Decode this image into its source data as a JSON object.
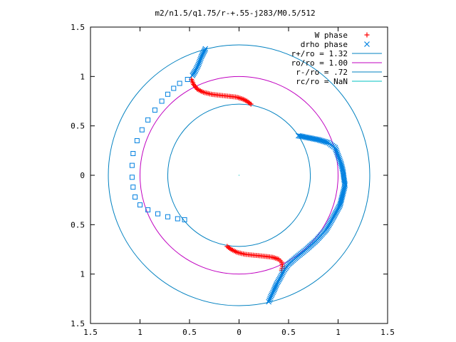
{
  "chart_data": {
    "type": "scatter",
    "title": "m2/n1.5/q1.75/r-+.55-j283/M0.5/512",
    "xlim": [
      -1.5,
      1.5
    ],
    "ylim": [
      -1.5,
      1.5
    ],
    "x_tick_values": [
      -1.5,
      -1,
      -0.5,
      0,
      0.5,
      1,
      1.5
    ],
    "x_tick_labels": [
      "1.5",
      "1",
      "0.5",
      "0",
      "0.5",
      "1",
      "1.5"
    ],
    "y_tick_values": [
      1.5,
      1,
      0.5,
      0,
      -0.5,
      -1,
      -1.5
    ],
    "y_tick_labels": [
      "1.5",
      "1",
      "0.5",
      "0",
      "0.5",
      "1",
      "1.5"
    ],
    "grid": false,
    "legend_position": "top-right",
    "legend": [
      {
        "label": "W phase",
        "kind": "plus",
        "color": "#ff0000"
      },
      {
        "label": "drho phase",
        "kind": "cross",
        "color": "#0080e0"
      },
      {
        "label": "r+/ro = 1.32",
        "kind": "line",
        "color": "#0080c0"
      },
      {
        "label": "ro/ro = 1.00",
        "kind": "line",
        "color": "#c000c0"
      },
      {
        "label": "r-/ro = .72",
        "kind": "line",
        "color": "#0080c0"
      },
      {
        "label": "rc/ro = NaN",
        "kind": "line",
        "color": "#00c0c0"
      }
    ],
    "circles": [
      {
        "r": 1.32,
        "color": "#0080c0"
      },
      {
        "r": 1.0,
        "color": "#c000c0"
      },
      {
        "r": 0.72,
        "color": "#0080c0"
      }
    ],
    "series": [
      {
        "name": "W phase",
        "marker": "plus",
        "color": "#ff0000",
        "points": [
          [
            -0.48,
            0.97
          ],
          [
            -0.46,
            0.92
          ],
          [
            -0.42,
            0.87
          ],
          [
            -0.36,
            0.84
          ],
          [
            -0.28,
            0.82
          ],
          [
            -0.2,
            0.81
          ],
          [
            -0.1,
            0.8
          ],
          [
            -0.02,
            0.79
          ],
          [
            0.04,
            0.77
          ],
          [
            0.08,
            0.75
          ],
          [
            0.12,
            0.72
          ],
          [
            -0.12,
            -0.72
          ],
          [
            -0.08,
            -0.75
          ],
          [
            -0.02,
            -0.78
          ],
          [
            0.06,
            -0.8
          ],
          [
            0.16,
            -0.81
          ],
          [
            0.26,
            -0.82
          ],
          [
            0.34,
            -0.83
          ],
          [
            0.4,
            -0.85
          ],
          [
            0.43,
            -0.88
          ],
          [
            0.44,
            -0.92
          ],
          [
            0.43,
            -0.96
          ]
        ]
      },
      {
        "name": "drho phase",
        "marker": "cross",
        "color": "#0080e0",
        "points": [
          [
            -0.34,
            1.28
          ],
          [
            -0.38,
            1.2
          ],
          [
            -0.41,
            1.12
          ],
          [
            -0.44,
            1.06
          ],
          [
            -0.47,
            1.01
          ],
          [
            0.6,
            0.4
          ],
          [
            0.7,
            0.38
          ],
          [
            0.8,
            0.36
          ],
          [
            0.9,
            0.33
          ],
          [
            0.97,
            0.28
          ],
          [
            1.0,
            0.2
          ],
          [
            1.03,
            0.12
          ],
          [
            1.05,
            0.04
          ],
          [
            1.06,
            -0.04
          ],
          [
            1.07,
            -0.1
          ],
          [
            1.05,
            -0.18
          ],
          [
            1.02,
            -0.3
          ],
          [
            0.95,
            -0.43
          ],
          [
            0.88,
            -0.55
          ],
          [
            0.78,
            -0.66
          ],
          [
            0.68,
            -0.75
          ],
          [
            0.58,
            -0.83
          ],
          [
            0.5,
            -0.9
          ],
          [
            0.45,
            -0.97
          ],
          [
            0.42,
            -1.03
          ],
          [
            0.38,
            -1.1
          ],
          [
            0.35,
            -1.17
          ],
          [
            0.32,
            -1.23
          ],
          [
            0.3,
            -1.28
          ]
        ]
      },
      {
        "name": "",
        "marker": "square",
        "color": "#0080e0",
        "points": [
          [
            -0.52,
            0.97
          ],
          [
            -0.6,
            0.93
          ],
          [
            -0.66,
            0.88
          ],
          [
            -0.72,
            0.82
          ],
          [
            -0.78,
            0.75
          ],
          [
            -0.85,
            0.66
          ],
          [
            -0.92,
            0.56
          ],
          [
            -0.98,
            0.46
          ],
          [
            -1.03,
            0.35
          ],
          [
            -1.07,
            0.22
          ],
          [
            -1.08,
            0.1
          ],
          [
            -1.08,
            -0.02
          ],
          [
            -1.07,
            -0.12
          ],
          [
            -1.05,
            -0.22
          ],
          [
            -1.0,
            -0.3
          ],
          [
            -0.92,
            -0.35
          ],
          [
            -0.82,
            -0.39
          ],
          [
            -0.72,
            -0.42
          ],
          [
            -0.62,
            -0.44
          ],
          [
            -0.55,
            -0.45
          ]
        ]
      }
    ]
  }
}
